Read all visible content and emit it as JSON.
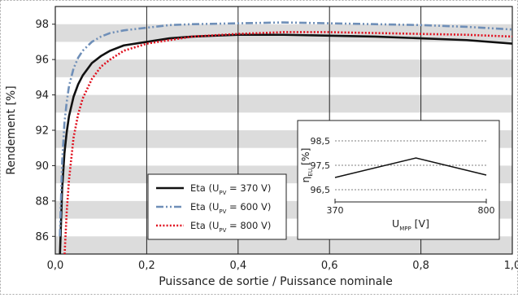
{
  "chart_data": [
    {
      "type": "line",
      "xlabel": "Puissance de sortie / Puissance nominale",
      "ylabel": "Rendement [%]",
      "xlim": [
        0.0,
        1.0
      ],
      "ylim": [
        85.0,
        99.0
      ],
      "xticks": [
        0.0,
        0.2,
        0.4,
        0.6,
        0.8,
        1.0
      ],
      "xtick_labels": [
        "0,0",
        "0,2",
        "0,4",
        "0,6",
        "0,8",
        "1,0"
      ],
      "yticks": [
        86,
        88,
        90,
        92,
        94,
        96,
        98
      ],
      "ytick_labels": [
        "86",
        "88",
        "90",
        "92",
        "94",
        "96",
        "98"
      ],
      "background": "alternating grey / white bands of 1 % width",
      "grid": "vertical lines at each x tick",
      "legend_position": "lower-center",
      "series": [
        {
          "name": "Eta (U_PV = 370 V)",
          "legend_label": "Eta (U",
          "legend_sub": "PV",
          "legend_rest": " = 370 V)",
          "color": "#111111",
          "style": "solid",
          "x": [
            0.01,
            0.015,
            0.02,
            0.025,
            0.03,
            0.04,
            0.05,
            0.06,
            0.08,
            0.1,
            0.12,
            0.15,
            0.2,
            0.25,
            0.3,
            0.4,
            0.5,
            0.6,
            0.7,
            0.8,
            0.9,
            1.0
          ],
          "y": [
            84.8,
            88.7,
            90.7,
            91.9,
            92.8,
            93.9,
            94.6,
            95.1,
            95.8,
            96.2,
            96.5,
            96.8,
            97.0,
            97.2,
            97.3,
            97.4,
            97.4,
            97.35,
            97.3,
            97.2,
            97.1,
            96.9
          ]
        },
        {
          "name": "Eta (U_PV = 600 V)",
          "legend_label": "Eta (U",
          "legend_sub": "PV",
          "legend_rest": " = 600 V)",
          "color": "#6f8fb8",
          "style": "dash-dot-dot",
          "x": [
            0.01,
            0.015,
            0.02,
            0.025,
            0.03,
            0.04,
            0.05,
            0.06,
            0.08,
            0.1,
            0.12,
            0.15,
            0.2,
            0.25,
            0.3,
            0.4,
            0.5,
            0.6,
            0.7,
            0.8,
            0.9,
            1.0
          ],
          "y": [
            86.0,
            90.2,
            92.4,
            93.6,
            94.5,
            95.5,
            96.1,
            96.5,
            97.0,
            97.3,
            97.5,
            97.65,
            97.8,
            97.95,
            98.0,
            98.05,
            98.1,
            98.05,
            98.0,
            97.95,
            97.85,
            97.7
          ]
        },
        {
          "name": "Eta (U_PV = 800 V)",
          "legend_label": "Eta (U",
          "legend_sub": "PV",
          "legend_rest": " = 800 V)",
          "color": "#e0101e",
          "style": "dotted",
          "x": [
            0.02,
            0.025,
            0.03,
            0.04,
            0.05,
            0.06,
            0.08,
            0.1,
            0.12,
            0.15,
            0.2,
            0.25,
            0.3,
            0.4,
            0.5,
            0.6,
            0.7,
            0.8,
            0.9,
            1.0
          ],
          "y": [
            84.8,
            87.4,
            89.2,
            91.6,
            92.9,
            93.8,
            94.9,
            95.6,
            96.0,
            96.5,
            96.9,
            97.1,
            97.3,
            97.45,
            97.55,
            97.55,
            97.5,
            97.45,
            97.4,
            97.3
          ]
        }
      ]
    },
    {
      "type": "line",
      "inset": true,
      "xlabel": "U",
      "xlabel_sub": "MPP",
      "xlabel_rest": " [V]",
      "ylabel": "η",
      "ylabel_sub": "EU",
      "ylabel_rest": " [%]",
      "xlim": [
        370,
        800
      ],
      "ylim": [
        96.0,
        99.0
      ],
      "xticks": [
        370,
        800
      ],
      "xtick_labels": [
        "370",
        "800"
      ],
      "yticks": [
        96.5,
        97.5,
        98.5
      ],
      "ytick_labels": [
        "96,5",
        "97,5",
        "98,5"
      ],
      "grid": "dashed horizontal lines at y ticks",
      "series": [
        {
          "color": "#111111",
          "x": [
            370,
            600,
            800
          ],
          "y": [
            97.0,
            97.8,
            97.1
          ]
        }
      ]
    }
  ]
}
